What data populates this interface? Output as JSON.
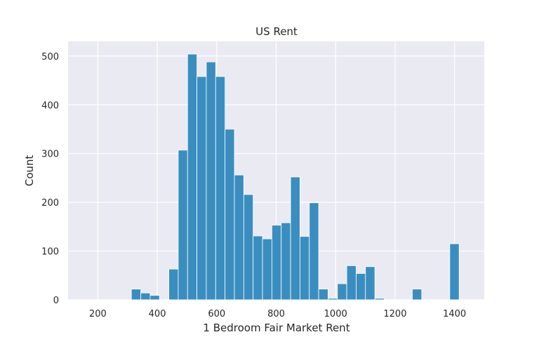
{
  "chart_data": {
    "type": "bar",
    "title": "US Rent",
    "xlabel": "1 Bedroom Fair Market Rent",
    "ylabel": "Count",
    "xlim": [
      100,
      1500
    ],
    "ylim": [
      0,
      530
    ],
    "xticks": [
      200,
      400,
      600,
      800,
      1000,
      1200,
      1400
    ],
    "yticks": [
      0,
      100,
      200,
      300,
      400,
      500
    ],
    "grid": true,
    "bin_width": 31.5,
    "bins": [
      {
        "x0": 313,
        "x1": 344.5,
        "count": 22
      },
      {
        "x0": 344.5,
        "x1": 376,
        "count": 14
      },
      {
        "x0": 376,
        "x1": 407.5,
        "count": 9
      },
      {
        "x0": 439,
        "x1": 470.5,
        "count": 63
      },
      {
        "x0": 470.5,
        "x1": 502,
        "count": 307
      },
      {
        "x0": 502,
        "x1": 533.5,
        "count": 504
      },
      {
        "x0": 533.5,
        "x1": 565,
        "count": 458
      },
      {
        "x0": 565,
        "x1": 596.5,
        "count": 488
      },
      {
        "x0": 596.5,
        "x1": 628,
        "count": 458
      },
      {
        "x0": 628,
        "x1": 659.5,
        "count": 350
      },
      {
        "x0": 659.5,
        "x1": 691,
        "count": 256
      },
      {
        "x0": 691,
        "x1": 722.5,
        "count": 216
      },
      {
        "x0": 722.5,
        "x1": 754,
        "count": 131
      },
      {
        "x0": 754,
        "x1": 785.5,
        "count": 125
      },
      {
        "x0": 785.5,
        "x1": 817,
        "count": 153
      },
      {
        "x0": 817,
        "x1": 848.5,
        "count": 158
      },
      {
        "x0": 848.5,
        "x1": 880,
        "count": 252
      },
      {
        "x0": 880,
        "x1": 911.5,
        "count": 130
      },
      {
        "x0": 911.5,
        "x1": 943,
        "count": 199
      },
      {
        "x0": 943,
        "x1": 974.5,
        "count": 22
      },
      {
        "x0": 974.5,
        "x1": 1006,
        "count": 3
      },
      {
        "x0": 1006,
        "x1": 1037.5,
        "count": 33
      },
      {
        "x0": 1037.5,
        "x1": 1069,
        "count": 70
      },
      {
        "x0": 1069,
        "x1": 1100.5,
        "count": 54
      },
      {
        "x0": 1100.5,
        "x1": 1132,
        "count": 68
      },
      {
        "x0": 1132,
        "x1": 1163.5,
        "count": 3
      },
      {
        "x0": 1258,
        "x1": 1289.5,
        "count": 22
      },
      {
        "x0": 1384,
        "x1": 1415.5,
        "count": 115
      }
    ],
    "colors": {
      "bar_fill": "#3a8ebf",
      "bar_edge": "#ffffff",
      "plot_bg": "#eaeaf2",
      "grid": "#ffffff",
      "text": "#262626"
    }
  }
}
